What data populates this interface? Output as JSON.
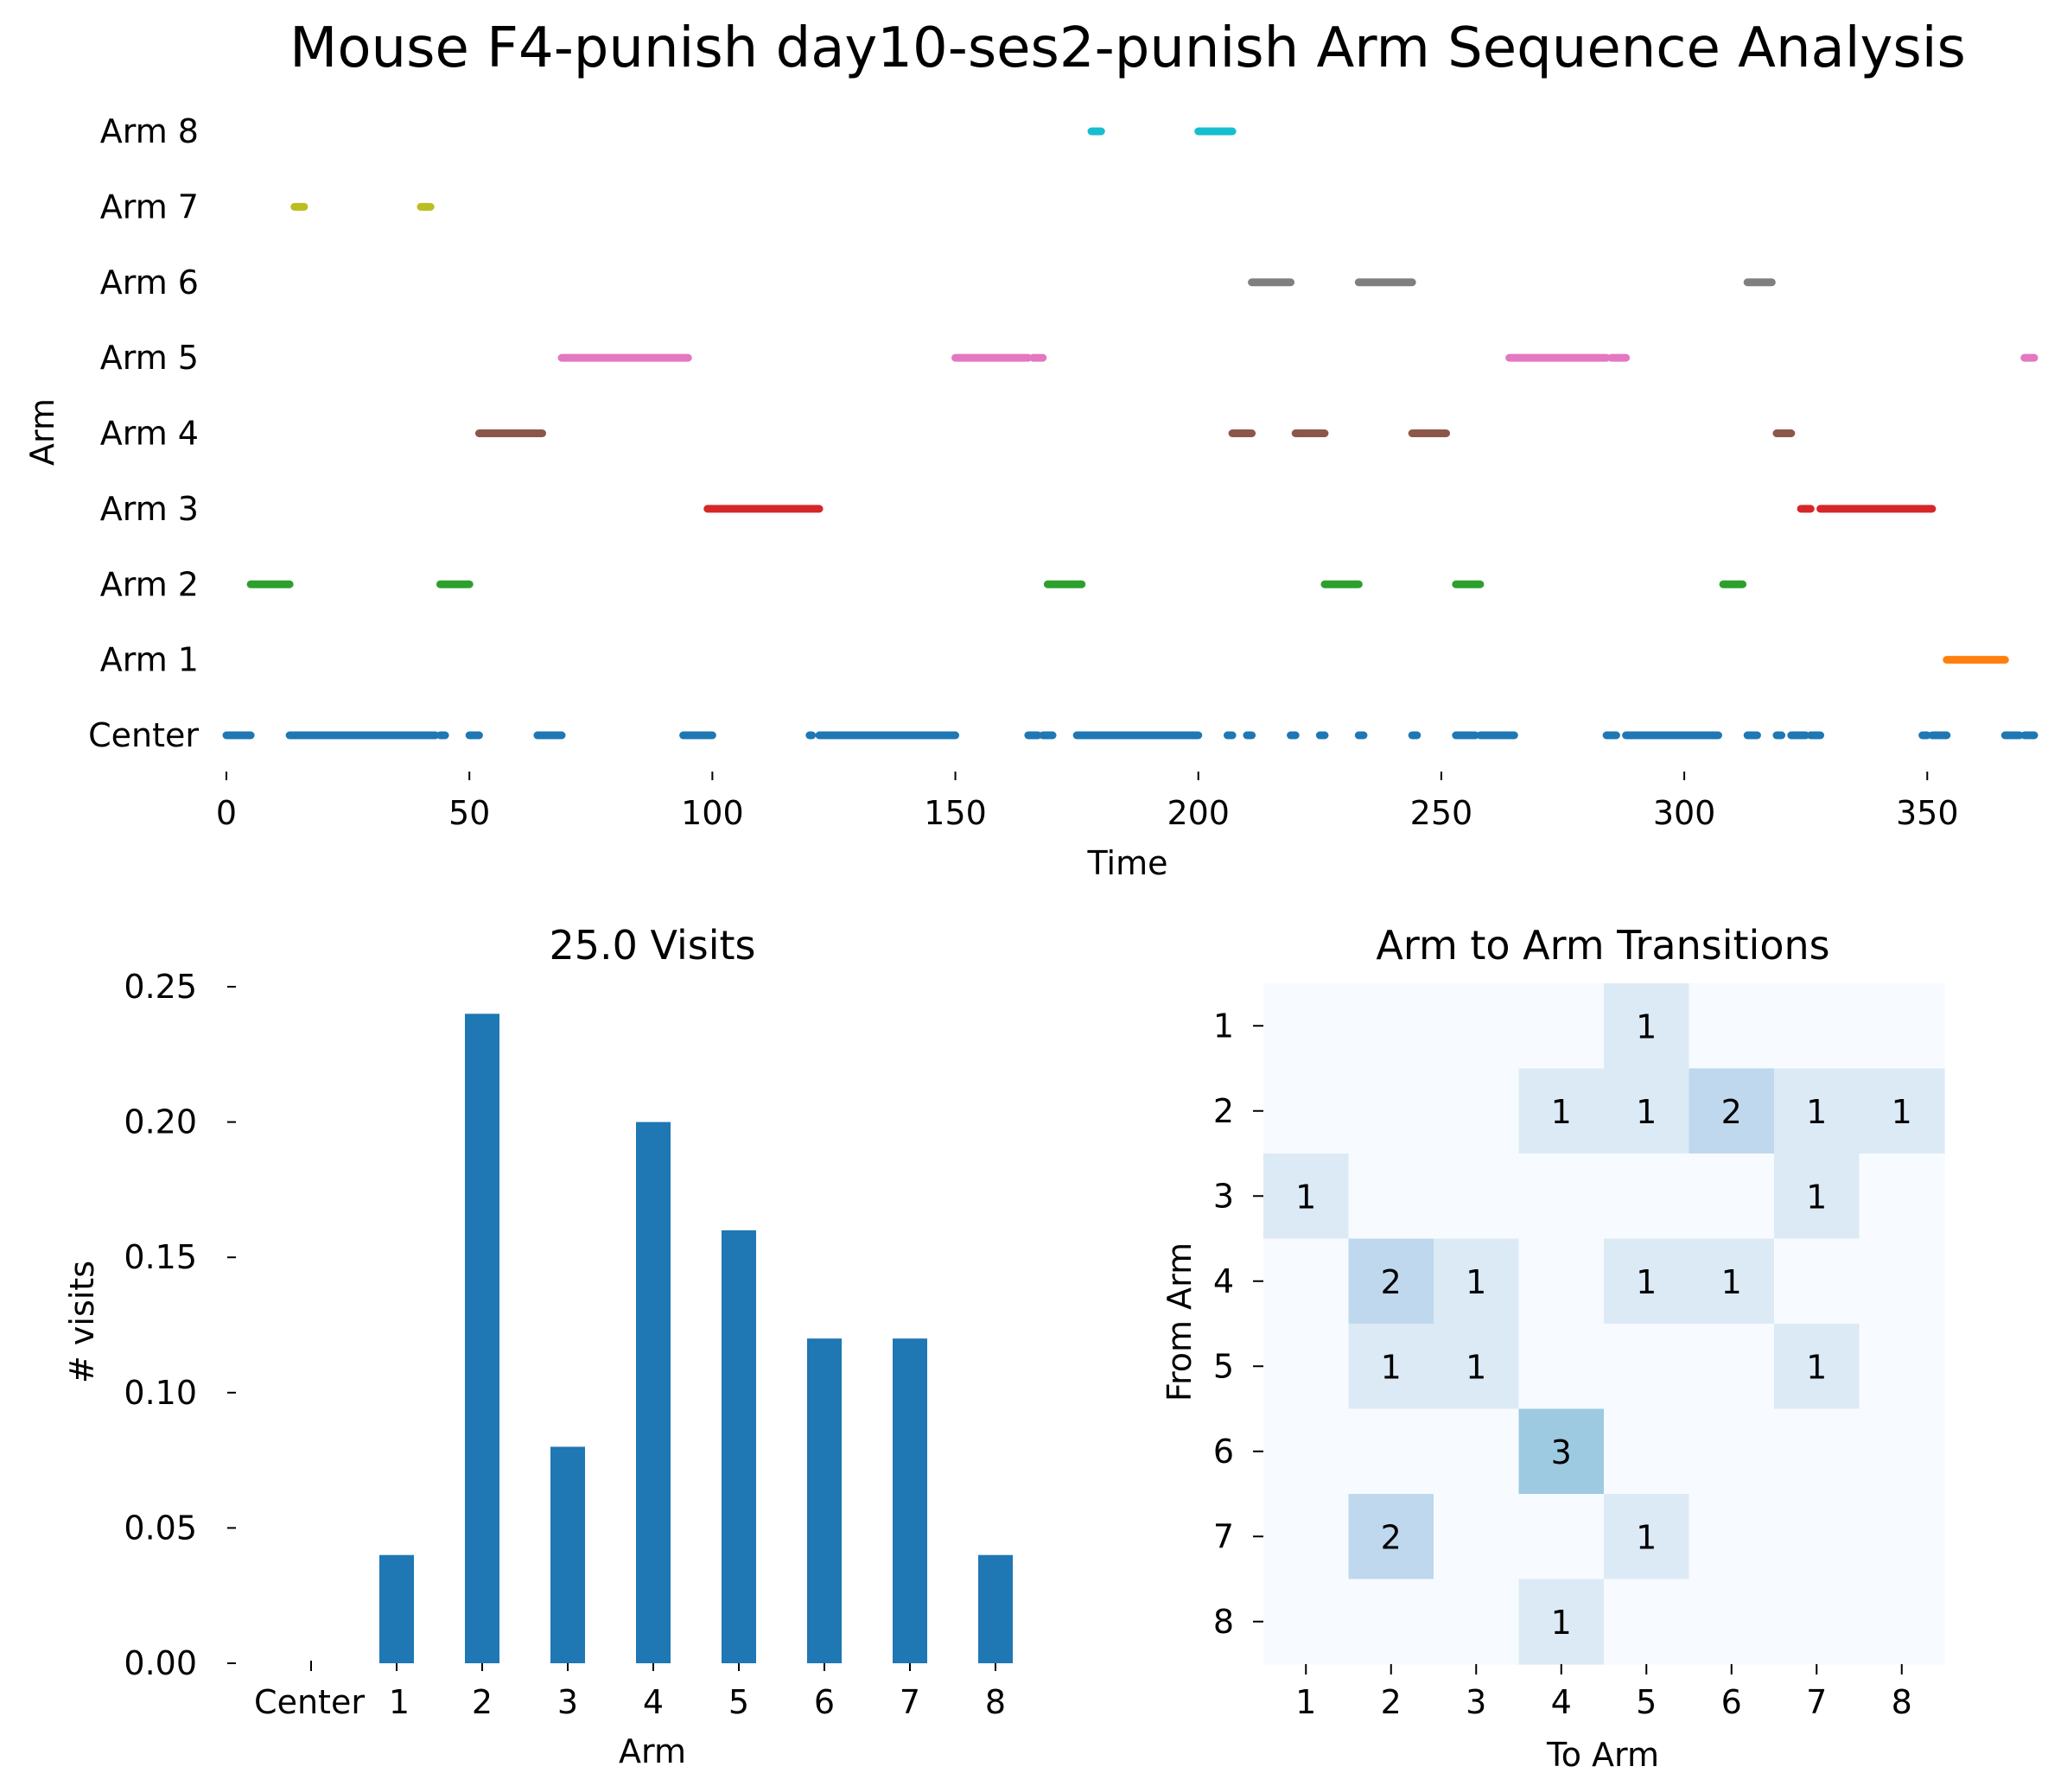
{
  "figure_title": "Mouse F4-punish day10-ses2-punish Arm Sequence Analysis",
  "chart_data": [
    {
      "type": "scatter",
      "title": "",
      "xlabel": "Time",
      "ylabel": "Arm",
      "xlim": [
        0,
        372
      ],
      "xticks": [
        0,
        50,
        100,
        150,
        200,
        250,
        300,
        350
      ],
      "yticks": [
        "Center",
        "Arm 1",
        "Arm 2",
        "Arm 3",
        "Arm 4",
        "Arm 5",
        "Arm 6",
        "Arm 7",
        "Arm 8"
      ],
      "grid": false,
      "series": [
        {
          "row": 0,
          "color": "#1f77b4",
          "segments": [
            [
              0,
              5
            ],
            [
              13,
              43
            ],
            [
              44,
              45
            ],
            [
              50,
              52
            ],
            [
              64,
              69
            ],
            [
              94,
              100
            ],
            [
              120,
              120.5
            ],
            [
              122,
              150
            ],
            [
              165,
              167
            ],
            [
              168,
              170
            ],
            [
              175,
              199
            ],
            [
              199,
              200
            ],
            [
              206,
              207
            ],
            [
              210,
              211
            ],
            [
              219,
              220
            ],
            [
              225,
              226
            ],
            [
              233,
              234
            ],
            [
              244,
              245
            ],
            [
              253,
              257
            ],
            [
              258,
              265
            ],
            [
              284,
              286
            ],
            [
              288,
              307
            ],
            [
              313,
              315
            ],
            [
              319,
              320
            ],
            [
              322,
              325
            ],
            [
              326,
              328
            ],
            [
              349,
              350
            ],
            [
              351,
              354
            ],
            [
              366,
              369
            ],
            [
              370,
              372
            ]
          ]
        },
        {
          "row": 1,
          "color": "#ff7f0e",
          "segments": [
            [
              354,
              366
            ]
          ]
        },
        {
          "row": 2,
          "color": "#2ca02c",
          "segments": [
            [
              5,
              13
            ],
            [
              44,
              50
            ],
            [
              169,
              176
            ],
            [
              226,
              233
            ],
            [
              253,
              258
            ],
            [
              308,
              312
            ]
          ]
        },
        {
          "row": 3,
          "color": "#d62728",
          "segments": [
            [
              99,
              122
            ],
            [
              324,
              326
            ],
            [
              328,
              351
            ]
          ]
        },
        {
          "row": 4,
          "color": "#8c564b",
          "segments": [
            [
              52,
              65
            ],
            [
              207,
              211
            ],
            [
              220,
              226
            ],
            [
              244,
              251
            ],
            [
              319,
              322
            ]
          ]
        },
        {
          "row": 5,
          "color": "#e377c2",
          "segments": [
            [
              69,
              95
            ],
            [
              150,
              165
            ],
            [
              166,
              168
            ],
            [
              264,
              284
            ],
            [
              285,
              288
            ],
            [
              370,
              372
            ]
          ]
        },
        {
          "row": 6,
          "color": "#7f7f7f",
          "segments": [
            [
              211,
              219
            ],
            [
              233,
              244
            ],
            [
              313,
              318
            ]
          ]
        },
        {
          "row": 7,
          "color": "#bcbd22",
          "segments": [
            [
              14,
              16
            ],
            [
              40,
              42
            ]
          ]
        },
        {
          "row": 8,
          "color": "#17becf",
          "segments": [
            [
              178,
              180
            ],
            [
              200,
              207
            ]
          ]
        }
      ]
    },
    {
      "type": "bar",
      "title": "25.0 Visits",
      "xlabel": "Arm",
      "ylabel": "# visits",
      "categories": [
        "Center",
        "1",
        "2",
        "3",
        "4",
        "5",
        "6",
        "7",
        "8"
      ],
      "values": [
        0,
        0.04,
        0.24,
        0.08,
        0.2,
        0.16,
        0.12,
        0.12,
        0.04
      ],
      "ylim": [
        0,
        0.25
      ],
      "yticks": [
        "0.00",
        "0.05",
        "0.10",
        "0.15",
        "0.20",
        "0.25"
      ],
      "color": "#1f77b4",
      "grid": false
    },
    {
      "type": "heatmap",
      "title": "Arm to Arm Transitions",
      "xlabel": "To Arm",
      "ylabel": "From Arm",
      "x_categories": [
        "1",
        "2",
        "3",
        "4",
        "5",
        "6",
        "7",
        "8"
      ],
      "y_categories": [
        "1",
        "2",
        "3",
        "4",
        "5",
        "6",
        "7",
        "8"
      ],
      "values": [
        [
          0,
          0,
          0,
          0,
          1,
          0,
          0,
          0
        ],
        [
          0,
          0,
          0,
          1,
          1,
          2,
          1,
          1
        ],
        [
          1,
          0,
          0,
          0,
          0,
          0,
          1,
          0
        ],
        [
          0,
          2,
          1,
          0,
          1,
          1,
          0,
          0
        ],
        [
          0,
          1,
          1,
          0,
          0,
          0,
          1,
          0
        ],
        [
          0,
          0,
          0,
          3,
          0,
          0,
          0,
          0
        ],
        [
          0,
          2,
          0,
          0,
          1,
          0,
          0,
          0
        ],
        [
          0,
          0,
          0,
          1,
          0,
          0,
          0,
          0
        ]
      ],
      "colors": [
        "#f7fbff",
        "#dceaf6",
        "#bfd8ed",
        "#9ecae1"
      ]
    }
  ]
}
